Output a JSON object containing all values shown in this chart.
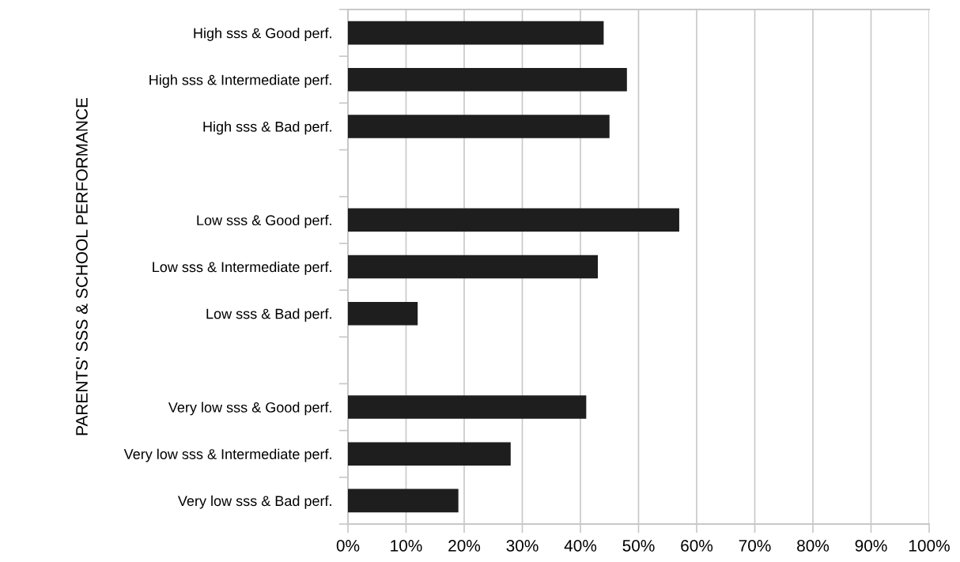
{
  "chart_data": {
    "type": "bar",
    "orientation": "horizontal",
    "ylabel": "PARENTS' SSS & SCHOOL PERFORMANCE",
    "categories": [
      "High sss & Good perf.",
      "High sss & Intermediate perf.",
      "High sss & Bad perf.",
      null,
      "Low sss & Good perf.",
      "Low sss & Intermediate perf.",
      "Low sss & Bad perf.",
      null,
      "Very low sss & Good perf.",
      "Very low sss & Intermediate perf.",
      "Very low sss & Bad perf."
    ],
    "values": [
      44,
      48,
      45,
      null,
      57,
      43,
      12,
      null,
      41,
      28,
      19
    ],
    "color": "#1e1e1e",
    "xlim": [
      0,
      100
    ],
    "xticks": [
      {
        "value": 0,
        "label": "0%"
      },
      {
        "value": 10,
        "label": "10%"
      },
      {
        "value": 20,
        "label": "20%"
      },
      {
        "value": 30,
        "label": "30%"
      },
      {
        "value": 40,
        "label": "40%"
      },
      {
        "value": 50,
        "label": "50%"
      },
      {
        "value": 60,
        "label": "60%"
      },
      {
        "value": 70,
        "label": "70%"
      },
      {
        "value": 80,
        "label": "80%"
      },
      {
        "value": 90,
        "label": "90%"
      },
      {
        "value": 100,
        "label": "100%"
      }
    ],
    "grid": "x"
  }
}
